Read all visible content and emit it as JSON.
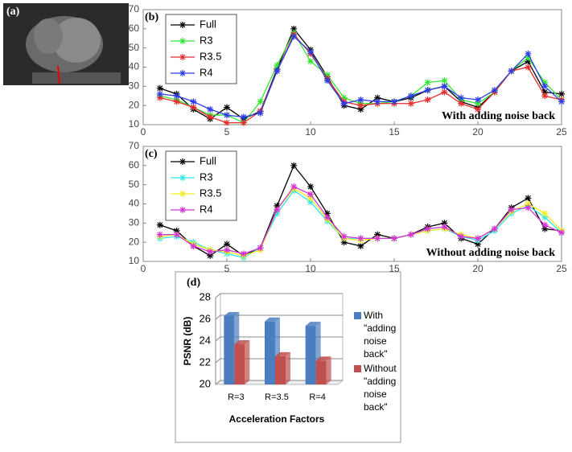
{
  "image": {
    "label": "(a)"
  },
  "chart_data": [
    {
      "type": "line",
      "label": "(b)",
      "annotation": "With adding noise back",
      "x": [
        1,
        2,
        3,
        4,
        5,
        6,
        7,
        8,
        9,
        10,
        11,
        12,
        13,
        14,
        15,
        16,
        17,
        18,
        19,
        20,
        21,
        22,
        23,
        24,
        25
      ],
      "series": [
        {
          "name": "Full",
          "color": "#000000",
          "values": [
            29,
            26,
            18,
            13,
            19,
            13,
            17,
            39,
            60,
            49,
            35,
            20,
            18,
            24,
            22,
            24,
            28,
            30,
            22,
            19,
            27,
            38,
            43,
            27,
            26
          ]
        },
        {
          "name": "R3",
          "color": "#33e633",
          "values": [
            25,
            23,
            19,
            15,
            15,
            11,
            22,
            41,
            58,
            43,
            36,
            24,
            21,
            21,
            22,
            25,
            32,
            33,
            23,
            21,
            27,
            38,
            45,
            32,
            23
          ]
        },
        {
          "name": "R3.5",
          "color": "#e62e2e",
          "values": [
            24,
            22,
            19,
            14,
            11,
            11,
            17,
            38,
            57,
            47,
            34,
            22,
            20,
            21,
            21,
            21,
            23,
            27,
            21,
            18,
            27,
            38,
            40,
            25,
            23
          ]
        },
        {
          "name": "R4",
          "color": "#2e3ee6",
          "values": [
            26,
            25,
            22,
            18,
            15,
            14,
            16,
            38,
            56,
            48,
            33,
            21,
            23,
            22,
            22,
            25,
            28,
            30,
            24,
            23,
            28,
            38,
            47,
            30,
            22
          ]
        }
      ],
      "xlim": [
        0,
        25
      ],
      "xticks": [
        0,
        5,
        10,
        15,
        20,
        25
      ],
      "ylim": [
        10,
        70
      ],
      "yticks": [
        10,
        20,
        30,
        40,
        50,
        60,
        70
      ],
      "legend": "upper left"
    },
    {
      "type": "line",
      "label": "(c)",
      "annotation": "Without adding noise back",
      "x": [
        1,
        2,
        3,
        4,
        5,
        6,
        7,
        8,
        9,
        10,
        11,
        12,
        13,
        14,
        15,
        16,
        17,
        18,
        19,
        20,
        21,
        22,
        23,
        24,
        25
      ],
      "series": [
        {
          "name": "Full",
          "color": "#000000",
          "values": [
            29,
            26,
            18,
            13,
            19,
            13,
            17,
            39,
            60,
            49,
            35,
            20,
            18,
            24,
            22,
            24,
            28,
            30,
            22,
            19,
            27,
            38,
            43,
            27,
            26
          ]
        },
        {
          "name": "R3",
          "color": "#33e6e6",
          "values": [
            22,
            23,
            20,
            16,
            14,
            12,
            17,
            35,
            47,
            41,
            31,
            22,
            22,
            22,
            22,
            24,
            26,
            27,
            23,
            21,
            26,
            35,
            39,
            33,
            25
          ]
        },
        {
          "name": "R3.5",
          "color": "#f0f020",
          "values": [
            23,
            24,
            19,
            16,
            15,
            13,
            16,
            37,
            48,
            43,
            32,
            22,
            21,
            22,
            22,
            24,
            26,
            27,
            24,
            22,
            27,
            36,
            40,
            35,
            26
          ]
        },
        {
          "name": "R4",
          "color": "#d633d6",
          "values": [
            24,
            24,
            18,
            15,
            16,
            14,
            17,
            37,
            49,
            45,
            33,
            23,
            22,
            22,
            22,
            24,
            27,
            28,
            23,
            22,
            27,
            37,
            38,
            29,
            25
          ]
        }
      ],
      "xlim": [
        0,
        25
      ],
      "xticks": [
        0,
        5,
        10,
        15,
        20,
        25
      ],
      "ylim": [
        10,
        70
      ],
      "yticks": [
        10,
        20,
        30,
        40,
        50,
        60,
        70
      ],
      "legend": "upper left"
    },
    {
      "type": "bar3d",
      "label": "(d)",
      "y_label": "PSNR (dB)",
      "x_label": "Acceleration Factors",
      "categories": [
        "R=3",
        "R=3.5",
        "R=4"
      ],
      "series": [
        {
          "name": "With \"adding noise back\"",
          "color": "#4a7ebf",
          "values": [
            26.3,
            25.8,
            25.4
          ]
        },
        {
          "name": "Without \"adding noise back\"",
          "color": "#c0504d",
          "values": [
            23.7,
            22.6,
            22.2
          ]
        }
      ],
      "ylim": [
        20,
        28
      ],
      "yticks": [
        20,
        22,
        24,
        26,
        28
      ],
      "grid": true,
      "legend": "right"
    }
  ]
}
